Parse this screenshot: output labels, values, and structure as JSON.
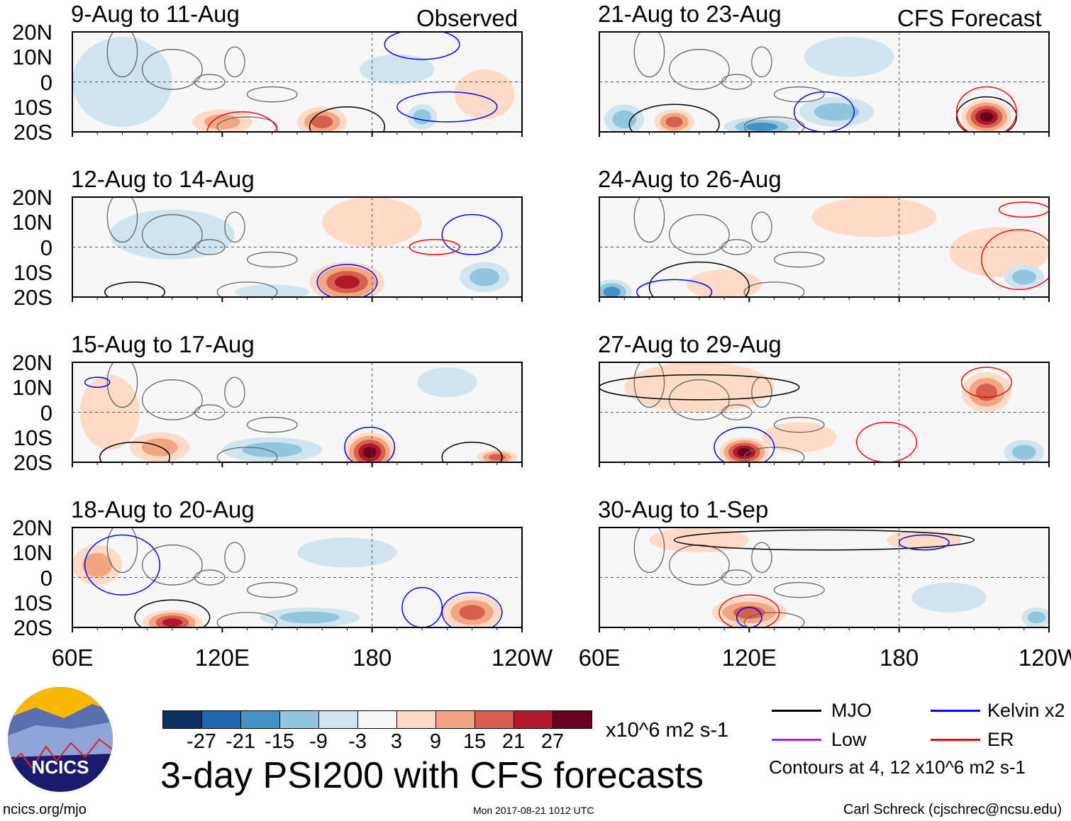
{
  "title": "3-day PSI200 with CFS forecasts",
  "observed_label": "Observed",
  "forecast_label": "CFS Forecast",
  "lat_labels": [
    "20N",
    "10N",
    "0",
    "10S",
    "20S"
  ],
  "lon_labels": [
    "60E",
    "120E",
    "180",
    "120W"
  ],
  "colorbar": {
    "colors": [
      "#0b2f5e",
      "#2166ac",
      "#4393c3",
      "#92c5de",
      "#d1e5f0",
      "#f7f7f7",
      "#fddbc7",
      "#f4a582",
      "#d6604d",
      "#b2182b",
      "#67001f"
    ],
    "ticks": [
      "-27",
      "-21",
      "-15",
      "-9",
      "-3",
      "3",
      "9",
      "15",
      "21",
      "27"
    ],
    "units": "x10^6 m2 s-1"
  },
  "legend": {
    "items": [
      {
        "label": "MJO",
        "color": "#000000"
      },
      {
        "label": "Kelvin x2",
        "color": "#0000ff"
      },
      {
        "label": "Low",
        "color": "#a020f0"
      },
      {
        "label": "ER",
        "color": "#ff0000"
      }
    ],
    "contours_note": "Contours at 4, 12 x10^6 m2 s-1"
  },
  "footer": {
    "site": "ncics.org/mjo",
    "timestamp": "Mon 2017-08-21 1012 UTC",
    "author": "Carl Schreck (cjschrec@ncsu.edu)",
    "logo_text": "NCICS"
  },
  "panels": [
    {
      "title": "9-Aug to 11-Aug",
      "blobs": [
        [
          80,
          0,
          -6,
          20,
          18
        ],
        [
          160,
          -16,
          15,
          10,
          6
        ],
        [
          120,
          -16,
          12,
          12,
          5
        ],
        [
          190,
          5,
          -6,
          15,
          6
        ],
        [
          200,
          -14,
          -9,
          6,
          5
        ],
        [
          225,
          -5,
          6,
          12,
          10
        ]
      ],
      "contours": [
        [
          128,
          -20,
          "#ff0000",
          14,
          8
        ],
        [
          170,
          -18,
          "#000000",
          15,
          8
        ],
        [
          210,
          -10,
          "#0000ff",
          20,
          6
        ],
        [
          200,
          15,
          "#0000ff",
          15,
          6
        ]
      ]
    },
    {
      "title": "21-Aug to 23-Aug",
      "blobs": [
        [
          215,
          -14,
          27,
          10,
          7
        ],
        [
          125,
          -18,
          -15,
          15,
          4
        ],
        [
          155,
          -12,
          -9,
          15,
          6
        ],
        [
          70,
          -15,
          -9,
          8,
          6
        ],
        [
          90,
          -16,
          15,
          8,
          5
        ],
        [
          160,
          10,
          -6,
          18,
          8
        ]
      ],
      "contours": [
        [
          215,
          -14,
          "#000000",
          12,
          8
        ],
        [
          90,
          -17,
          "#000000",
          18,
          8
        ],
        [
          150,
          -12,
          "#0000ff",
          12,
          8
        ],
        [
          215,
          -12,
          "#ff0000",
          12,
          10
        ]
      ]
    },
    {
      "title": "12-Aug to 14-Aug",
      "blobs": [
        [
          170,
          -14,
          21,
          15,
          8
        ],
        [
          100,
          5,
          -6,
          25,
          10
        ],
        [
          180,
          10,
          6,
          20,
          10
        ],
        [
          225,
          -12,
          -9,
          10,
          6
        ],
        [
          140,
          -18,
          -6,
          15,
          3
        ]
      ],
      "contours": [
        [
          170,
          -14,
          "#0000ff",
          12,
          7
        ],
        [
          85,
          -18,
          "#000000",
          12,
          4
        ],
        [
          220,
          5,
          "#0000ff",
          12,
          8
        ],
        [
          205,
          0,
          "#ff0000",
          10,
          3
        ]
      ]
    },
    {
      "title": "24-Aug to 26-Aug",
      "blobs": [
        [
          65,
          -18,
          -15,
          8,
          5
        ],
        [
          110,
          -15,
          6,
          15,
          6
        ],
        [
          170,
          12,
          6,
          25,
          8
        ],
        [
          220,
          -2,
          6,
          20,
          10
        ],
        [
          230,
          -12,
          -9,
          8,
          5
        ]
      ],
      "contours": [
        [
          100,
          -16,
          "#000000",
          20,
          10
        ],
        [
          90,
          -18,
          "#0000ff",
          15,
          5
        ],
        [
          228,
          -5,
          "#ff0000",
          15,
          12
        ],
        [
          230,
          15,
          "#ff0000",
          10,
          3
        ]
      ]
    },
    {
      "title": "15-Aug to 17-Aug",
      "blobs": [
        [
          179,
          -16,
          27,
          10,
          8
        ],
        [
          95,
          -14,
          12,
          12,
          6
        ],
        [
          75,
          0,
          6,
          12,
          15
        ],
        [
          140,
          -15,
          -9,
          20,
          5
        ],
        [
          210,
          12,
          -6,
          12,
          6
        ],
        [
          230,
          -18,
          15,
          8,
          3
        ]
      ],
      "contours": [
        [
          179,
          -14,
          "#0000ff",
          10,
          8
        ],
        [
          85,
          -18,
          "#000000",
          14,
          6
        ],
        [
          220,
          -18,
          "#000000",
          12,
          6
        ],
        [
          70,
          12,
          "#0000ff",
          5,
          2
        ]
      ]
    },
    {
      "title": "27-Aug to 29-Aug",
      "blobs": [
        [
          118,
          -16,
          27,
          10,
          6
        ],
        [
          100,
          10,
          6,
          30,
          10
        ],
        [
          215,
          8,
          15,
          10,
          8
        ],
        [
          140,
          -10,
          6,
          15,
          6
        ],
        [
          230,
          -16,
          -9,
          8,
          5
        ]
      ],
      "contours": [
        [
          118,
          -14,
          "#0000ff",
          12,
          8
        ],
        [
          100,
          10,
          "#000000",
          40,
          5
        ],
        [
          215,
          12,
          "#ff0000",
          10,
          6
        ],
        [
          175,
          -12,
          "#ff0000",
          12,
          8
        ]
      ]
    },
    {
      "title": "18-Aug to 20-Aug",
      "blobs": [
        [
          100,
          -18,
          21,
          12,
          5
        ],
        [
          70,
          5,
          9,
          10,
          8
        ],
        [
          220,
          -14,
          15,
          12,
          7
        ],
        [
          170,
          10,
          -6,
          20,
          6
        ],
        [
          155,
          -16,
          -9,
          20,
          4
        ]
      ],
      "contours": [
        [
          100,
          -16,
          "#000000",
          15,
          7
        ],
        [
          80,
          5,
          "#0000ff",
          15,
          12
        ],
        [
          220,
          -14,
          "#0000ff",
          12,
          8
        ],
        [
          200,
          -12,
          "#0000ff",
          8,
          8
        ]
      ]
    },
    {
      "title": "30-Aug to 1-Sep",
      "blobs": [
        [
          120,
          -14,
          15,
          15,
          6
        ],
        [
          100,
          15,
          6,
          20,
          5
        ],
        [
          190,
          15,
          6,
          15,
          4
        ],
        [
          200,
          -8,
          -6,
          15,
          6
        ],
        [
          235,
          -16,
          -9,
          6,
          4
        ]
      ],
      "contours": [
        [
          120,
          -14,
          "#ff0000",
          12,
          7
        ],
        [
          120,
          -16,
          "#0000ff",
          5,
          4
        ],
        [
          150,
          15,
          "#000000",
          60,
          4
        ],
        [
          190,
          14,
          "#0000ff",
          10,
          3
        ]
      ]
    }
  ]
}
